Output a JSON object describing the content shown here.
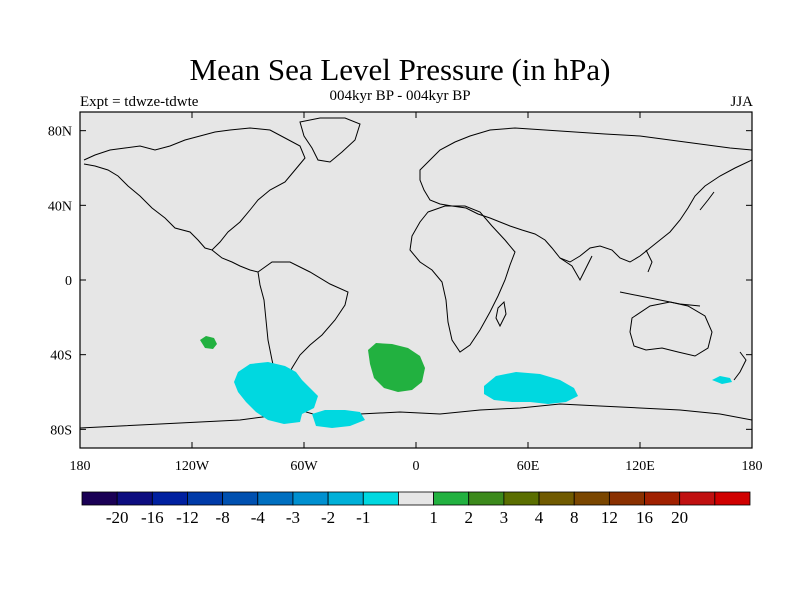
{
  "header": {
    "title": "Mean Sea Level Pressure (in hPa)",
    "subtitle": "004kyr BP - 004kyr BP",
    "left_label": "Expt = tdwze-tdwte",
    "right_label": "JJA"
  },
  "map": {
    "lat_ticks": [
      {
        "value": 80,
        "label": "80N"
      },
      {
        "value": 40,
        "label": "40N"
      },
      {
        "value": 0,
        "label": "0"
      },
      {
        "value": -40,
        "label": "40S"
      },
      {
        "value": -80,
        "label": "80S"
      }
    ],
    "lon_ticks": [
      {
        "value": -180,
        "label": "180"
      },
      {
        "value": -120,
        "label": "120W"
      },
      {
        "value": -60,
        "label": "60W"
      },
      {
        "value": 0,
        "label": "0"
      },
      {
        "value": 60,
        "label": "60E"
      },
      {
        "value": 120,
        "label": "120E"
      },
      {
        "value": 180,
        "label": "180"
      }
    ],
    "ocean_color": "#e6e6e6",
    "anomaly_regions": [
      {
        "sign": "positive",
        "color": "#22b140",
        "center_lon": -111,
        "center_lat": -33,
        "description_key": "pos1"
      },
      {
        "sign": "positive",
        "color": "#22b140",
        "center_lon": -14,
        "center_lat": -45
      },
      {
        "sign": "negative",
        "color": "#00d8e0",
        "center_lon": -72,
        "center_lat": -58
      },
      {
        "sign": "negative",
        "color": "#00d8e0",
        "center_lon": -42,
        "center_lat": -71
      },
      {
        "sign": "negative",
        "color": "#00d8e0",
        "center_lon": 60,
        "center_lat": -56
      },
      {
        "sign": "negative",
        "color": "#00d8e0",
        "center_lon": 164,
        "center_lat": -52
      }
    ]
  },
  "colorbar": {
    "colors": [
      "#1a0055",
      "#0d0d80",
      "#0020a0",
      "#003aa8",
      "#0050b0",
      "#006fc0",
      "#0090d0",
      "#00b0d8",
      "#00d8e0",
      "#e6e6e6",
      "#22b140",
      "#3c8a1c",
      "#5a6e00",
      "#705a00",
      "#7a4600",
      "#8a3000",
      "#a02000",
      "#c01010",
      "#d00000"
    ],
    "labels": [
      "-20",
      "-16",
      "-12",
      "-8",
      "-4",
      "-3",
      "-2",
      "-1",
      "1",
      "2",
      "3",
      "4",
      "8",
      "12",
      "16",
      "20"
    ]
  }
}
